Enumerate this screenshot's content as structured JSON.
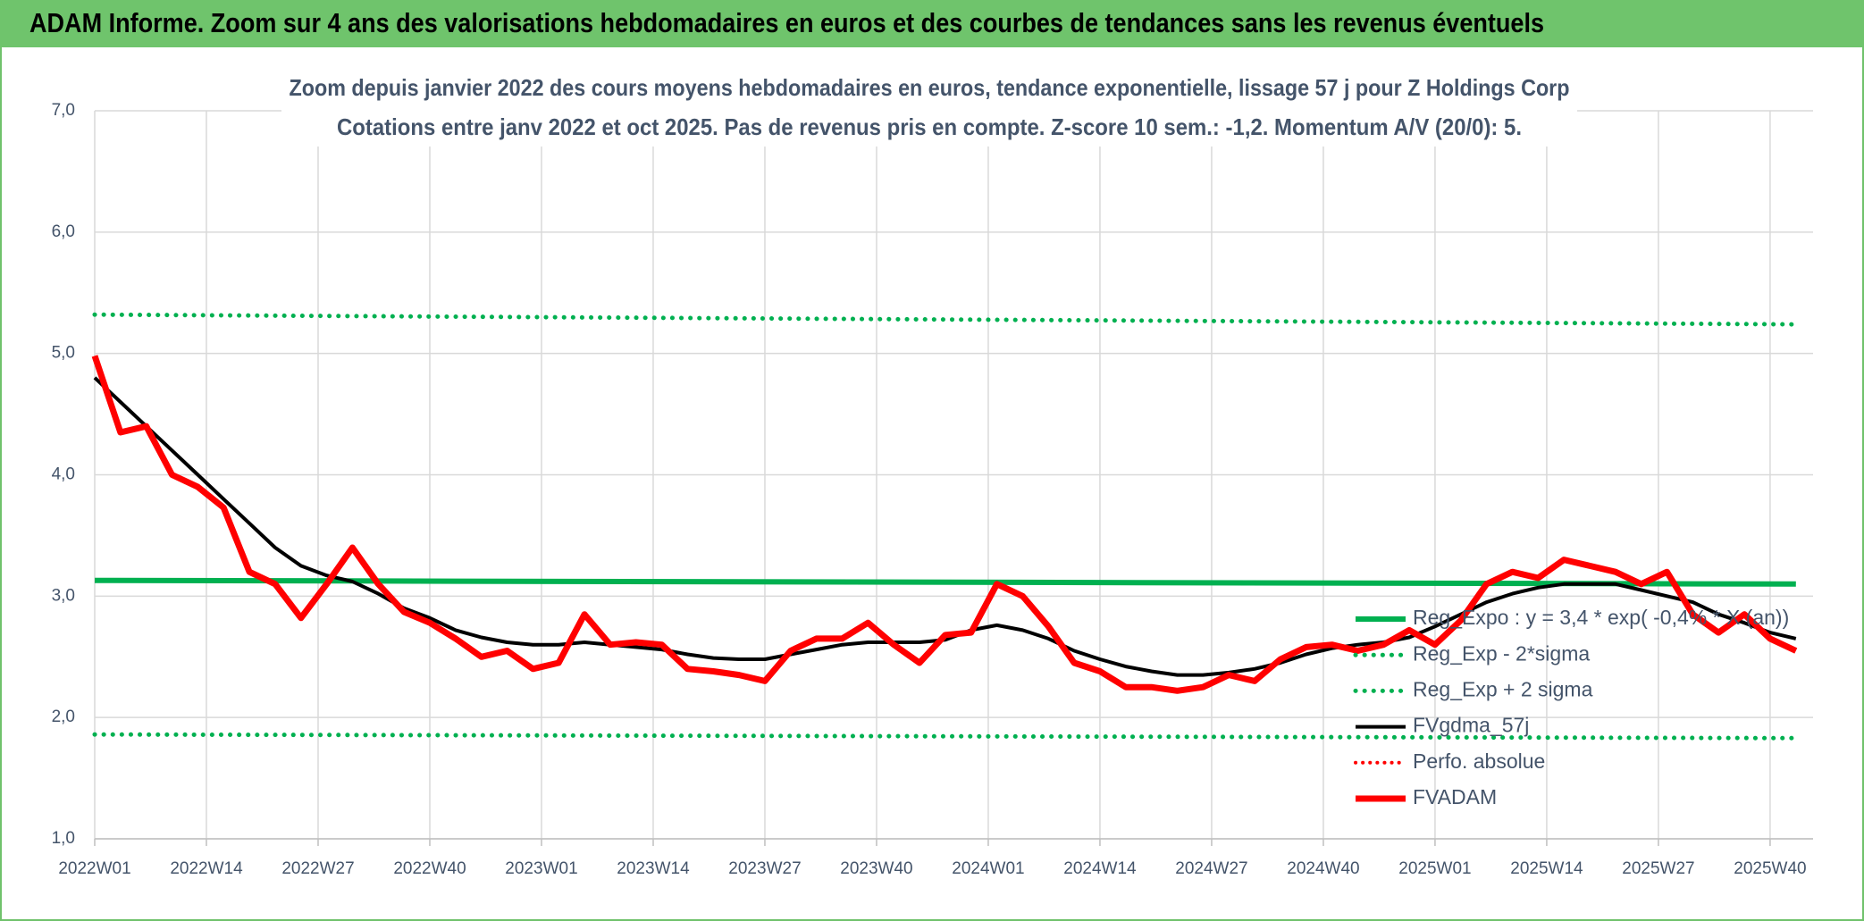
{
  "header": {
    "title": "ADAM Informe. Zoom sur 4 ans des valorisations hebdomadaires en euros et des courbes de tendances sans les revenus éventuels"
  },
  "chart_data": {
    "type": "line",
    "title": "Zoom depuis janvier 2022 des cours moyens hebdomadaires en euros, tendance exponentielle, lissage 57 j pour Z Holdings Corp",
    "subtitle": "Cotations entre janv 2022 et oct 2025. Pas de revenus pris en compte. Z-score 10 sem.: -1,2. Momentum A/V (20/0): 5.",
    "x": [
      0,
      3,
      6,
      9,
      12,
      15,
      18,
      21,
      24,
      27,
      30,
      33,
      36,
      39,
      42,
      45,
      48,
      51,
      54,
      57,
      60,
      63,
      66,
      69,
      72,
      75,
      78,
      81,
      84,
      87,
      90,
      93,
      96,
      99,
      102,
      105,
      108,
      111,
      114,
      117,
      120,
      123,
      126,
      129,
      132,
      135,
      138,
      141,
      144,
      147,
      150,
      153,
      156,
      159,
      162,
      165,
      168,
      171,
      174,
      177,
      180,
      183,
      186,
      189,
      192,
      195,
      198
    ],
    "xlim": [
      0,
      200
    ],
    "xticks": [
      {
        "value": 0,
        "label": "2022W01"
      },
      {
        "value": 13,
        "label": "2022W14"
      },
      {
        "value": 26,
        "label": "2022W27"
      },
      {
        "value": 39,
        "label": "2022W40"
      },
      {
        "value": 52,
        "label": "2023W01"
      },
      {
        "value": 65,
        "label": "2023W14"
      },
      {
        "value": 78,
        "label": "2023W27"
      },
      {
        "value": 91,
        "label": "2023W40"
      },
      {
        "value": 104,
        "label": "2024W01"
      },
      {
        "value": 117,
        "label": "2024W14"
      },
      {
        "value": 130,
        "label": "2024W27"
      },
      {
        "value": 143,
        "label": "2024W40"
      },
      {
        "value": 156,
        "label": "2025W01"
      },
      {
        "value": 169,
        "label": "2025W14"
      },
      {
        "value": 182,
        "label": "2025W27"
      },
      {
        "value": 195,
        "label": "2025W40"
      }
    ],
    "ylim": [
      1,
      7
    ],
    "yticks": [
      {
        "value": 1,
        "label": "1,0"
      },
      {
        "value": 2,
        "label": "2,0"
      },
      {
        "value": 3,
        "label": "3,0"
      },
      {
        "value": 4,
        "label": "4,0"
      },
      {
        "value": 5,
        "label": "5,0"
      },
      {
        "value": 6,
        "label": "6,0"
      },
      {
        "value": 7,
        "label": "7,0"
      }
    ],
    "grid": true,
    "legend": "lower right",
    "series": [
      {
        "name": "Reg_Expo : y = 3,4 * exp( -0,4% * X (an))",
        "color": "#00b050",
        "style": "solid",
        "width": 6,
        "x": [
          0,
          198
        ],
        "values": [
          3.13,
          3.1
        ]
      },
      {
        "name": "Reg_Exp - 2*sigma",
        "color": "#00b050",
        "style": "dotted",
        "width": 5,
        "x": [
          0,
          198
        ],
        "values": [
          1.86,
          1.83
        ]
      },
      {
        "name": "Reg_Exp + 2 sigma",
        "color": "#00b050",
        "style": "dotted",
        "width": 5,
        "x": [
          0,
          198
        ],
        "values": [
          5.32,
          5.24
        ]
      },
      {
        "name": "FVgdma_57j",
        "color": "#000000",
        "style": "solid",
        "width": 4,
        "values": [
          4.8,
          4.6,
          4.4,
          4.2,
          4.0,
          3.8,
          3.6,
          3.4,
          3.25,
          3.17,
          3.12,
          3.02,
          2.9,
          2.82,
          2.72,
          2.66,
          2.62,
          2.6,
          2.6,
          2.62,
          2.6,
          2.58,
          2.56,
          2.52,
          2.49,
          2.48,
          2.48,
          2.52,
          2.56,
          2.6,
          2.62,
          2.62,
          2.62,
          2.64,
          2.72,
          2.76,
          2.72,
          2.65,
          2.55,
          2.48,
          2.42,
          2.38,
          2.35,
          2.35,
          2.37,
          2.4,
          2.45,
          2.52,
          2.57,
          2.6,
          2.62,
          2.66,
          2.75,
          2.85,
          2.95,
          3.02,
          3.07,
          3.1,
          3.1,
          3.1,
          3.05,
          3.0,
          2.95,
          2.85,
          2.78,
          2.7,
          2.65
        ]
      },
      {
        "name": "Perfo. absolue",
        "color": "#ff0000",
        "style": "dotted",
        "width": 4,
        "x": [],
        "values": []
      },
      {
        "name": "FVADAM",
        "color": "#ff0000",
        "style": "solid",
        "width": 7,
        "values": [
          4.98,
          4.35,
          4.4,
          4.0,
          3.9,
          3.73,
          3.2,
          3.1,
          2.82,
          3.1,
          3.4,
          3.1,
          2.87,
          2.78,
          2.65,
          2.5,
          2.55,
          2.4,
          2.45,
          2.85,
          2.6,
          2.62,
          2.6,
          2.4,
          2.38,
          2.35,
          2.3,
          2.55,
          2.65,
          2.65,
          2.78,
          2.6,
          2.45,
          2.68,
          2.7,
          3.1,
          3.0,
          2.75,
          2.45,
          2.38,
          2.25,
          2.25,
          2.22,
          2.25,
          2.35,
          2.3,
          2.48,
          2.58,
          2.6,
          2.55,
          2.6,
          2.72,
          2.6,
          2.8,
          3.1,
          3.2,
          3.15,
          3.3,
          3.25,
          3.2,
          3.1,
          3.2,
          2.85,
          2.7,
          2.85,
          2.65,
          2.55
        ]
      }
    ]
  }
}
